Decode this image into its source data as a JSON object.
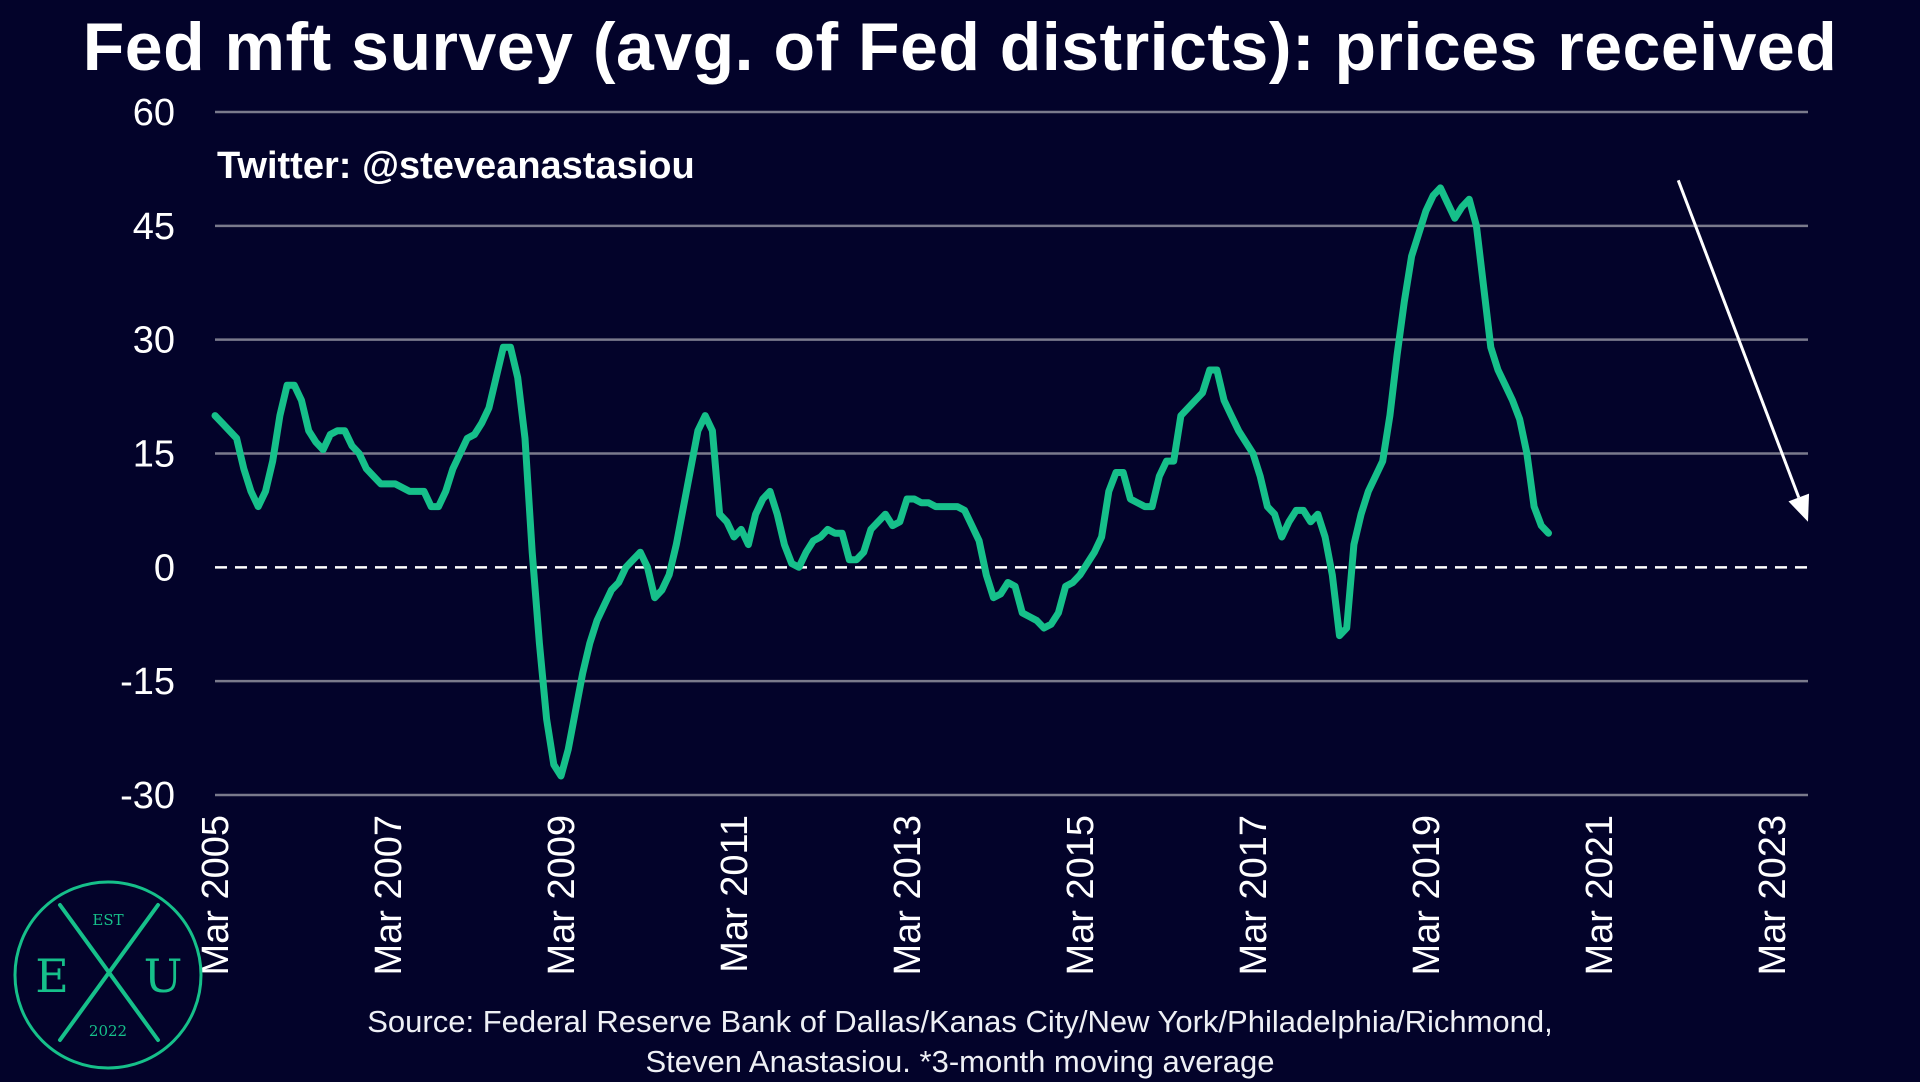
{
  "title": "Fed mft survey (avg. of Fed districts): prices received",
  "watermark": "Twitter: @steveanastasiou",
  "source_lines": [
    "Source: Federal Reserve Bank of Dallas/Kanas City/New York/Philadelphia/Richmond,",
    "Steven Anastasiou. *3-month moving average"
  ],
  "logo": {
    "top": "EST",
    "left": "E",
    "right": "U",
    "bottom": "2022"
  },
  "colors": {
    "background": "#03032a",
    "line": "#16c08a",
    "grid": "#7a7a8c",
    "arrow": "#ffffff"
  },
  "chart_data": {
    "type": "line",
    "title": "Fed mft survey (avg. of Fed districts): prices received",
    "xlabel": "",
    "ylabel": "",
    "ylim": [
      -30,
      60
    ],
    "yticks": [
      -30,
      -15,
      0,
      15,
      30,
      45,
      60
    ],
    "xlim": [
      "2005-03",
      "2023-08"
    ],
    "xticks": [
      {
        "date": "2005-03",
        "label": "Mar 2005"
      },
      {
        "date": "2007-03",
        "label": "Mar 2007"
      },
      {
        "date": "2009-03",
        "label": "Mar 2009"
      },
      {
        "date": "2011-03",
        "label": "Mar 2011"
      },
      {
        "date": "2013-03",
        "label": "Mar 2013"
      },
      {
        "date": "2015-03",
        "label": "Mar 2015"
      },
      {
        "date": "2017-03",
        "label": "Mar 2017"
      },
      {
        "date": "2019-03",
        "label": "Mar 2019"
      },
      {
        "date": "2021-03",
        "label": "Mar 2021"
      },
      {
        "date": "2023-03",
        "label": "Mar 2023"
      }
    ],
    "grid": true,
    "zero_line": "dashed",
    "annotation": {
      "type": "arrow",
      "from": [
        "2022-02",
        51
      ],
      "to": [
        "2023-08",
        6
      ]
    },
    "series": [
      {
        "values": [
          [
            "2005-03",
            20.0
          ],
          [
            "2005-04",
            19.0
          ],
          [
            "2005-05",
            18.0
          ],
          [
            "2005-06",
            17.0
          ],
          [
            "2005-07",
            13.0
          ],
          [
            "2005-08",
            10.0
          ],
          [
            "2005-09",
            8.0
          ],
          [
            "2005-10",
            10.0
          ],
          [
            "2005-11",
            14.0
          ],
          [
            "2005-12",
            20.0
          ],
          [
            "2006-01",
            24.0
          ],
          [
            "2006-02",
            24.0
          ],
          [
            "2006-03",
            22.0
          ],
          [
            "2006-04",
            18.0
          ],
          [
            "2006-05",
            16.5
          ],
          [
            "2006-06",
            15.5
          ],
          [
            "2006-07",
            17.5
          ],
          [
            "2006-08",
            18.0
          ],
          [
            "2006-09",
            18.0
          ],
          [
            "2006-10",
            16.0
          ],
          [
            "2006-11",
            15.0
          ],
          [
            "2006-12",
            13.0
          ],
          [
            "2007-01",
            12.0
          ],
          [
            "2007-02",
            11.0
          ],
          [
            "2007-03",
            11.0
          ],
          [
            "2007-04",
            11.0
          ],
          [
            "2007-05",
            10.5
          ],
          [
            "2007-06",
            10.0
          ],
          [
            "2007-07",
            10.0
          ],
          [
            "2007-08",
            10.0
          ],
          [
            "2007-09",
            8.0
          ],
          [
            "2007-10",
            8.0
          ],
          [
            "2007-11",
            10.0
          ],
          [
            "2007-12",
            13.0
          ],
          [
            "2008-01",
            15.0
          ],
          [
            "2008-02",
            17.0
          ],
          [
            "2008-03",
            17.5
          ],
          [
            "2008-04",
            19.0
          ],
          [
            "2008-05",
            21.0
          ],
          [
            "2008-06",
            25.0
          ],
          [
            "2008-07",
            29.0
          ],
          [
            "2008-08",
            29.0
          ],
          [
            "2008-09",
            25.0
          ],
          [
            "2008-10",
            17.0
          ],
          [
            "2008-11",
            2.0
          ],
          [
            "2008-12",
            -10.0
          ],
          [
            "2009-01",
            -20.0
          ],
          [
            "2009-02",
            -26.0
          ],
          [
            "2009-03",
            -27.5
          ],
          [
            "2009-04",
            -24.0
          ],
          [
            "2009-05",
            -19.0
          ],
          [
            "2009-06",
            -14.0
          ],
          [
            "2009-07",
            -10.0
          ],
          [
            "2009-08",
            -7.0
          ],
          [
            "2009-09",
            -5.0
          ],
          [
            "2009-10",
            -3.0
          ],
          [
            "2009-11",
            -2.0
          ],
          [
            "2009-12",
            0.0
          ],
          [
            "2010-01",
            1.0
          ],
          [
            "2010-02",
            2.0
          ],
          [
            "2010-03",
            0.0
          ],
          [
            "2010-04",
            -4.0
          ],
          [
            "2010-05",
            -3.0
          ],
          [
            "2010-06",
            -1.0
          ],
          [
            "2010-07",
            3.0
          ],
          [
            "2010-08",
            8.0
          ],
          [
            "2010-09",
            13.0
          ],
          [
            "2010-10",
            18.0
          ],
          [
            "2010-11",
            20.0
          ],
          [
            "2010-12",
            18.0
          ],
          [
            "2011-01",
            7.0
          ],
          [
            "2011-02",
            6.0
          ],
          [
            "2011-03",
            4.0
          ],
          [
            "2011-04",
            5.0
          ],
          [
            "2011-05",
            3.0
          ],
          [
            "2011-06",
            7.0
          ],
          [
            "2011-07",
            9.0
          ],
          [
            "2011-08",
            10.0
          ],
          [
            "2011-09",
            7.0
          ],
          [
            "2011-10",
            3.0
          ],
          [
            "2011-11",
            0.5
          ],
          [
            "2011-12",
            0.0
          ],
          [
            "2012-01",
            2.0
          ],
          [
            "2012-02",
            3.5
          ],
          [
            "2012-03",
            4.0
          ],
          [
            "2012-04",
            5.0
          ],
          [
            "2012-05",
            4.5
          ],
          [
            "2012-06",
            4.5
          ],
          [
            "2012-07",
            1.0
          ],
          [
            "2012-08",
            1.0
          ],
          [
            "2012-09",
            2.0
          ],
          [
            "2012-10",
            5.0
          ],
          [
            "2012-11",
            6.0
          ],
          [
            "2012-12",
            7.0
          ],
          [
            "2013-01",
            5.5
          ],
          [
            "2013-02",
            6.0
          ],
          [
            "2013-03",
            9.0
          ],
          [
            "2013-04",
            9.0
          ],
          [
            "2013-05",
            8.5
          ],
          [
            "2013-06",
            8.5
          ],
          [
            "2013-07",
            8.0
          ],
          [
            "2013-08",
            8.0
          ],
          [
            "2013-09",
            8.0
          ],
          [
            "2013-10",
            8.0
          ],
          [
            "2013-11",
            7.5
          ],
          [
            "2013-12",
            5.5
          ],
          [
            "2014-01",
            3.5
          ],
          [
            "2014-02",
            -1.0
          ],
          [
            "2014-03",
            -4.0
          ],
          [
            "2014-04",
            -3.5
          ],
          [
            "2014-05",
            -2.0
          ],
          [
            "2014-06",
            -2.5
          ],
          [
            "2014-07",
            -6.0
          ],
          [
            "2014-08",
            -6.5
          ],
          [
            "2014-09",
            -7.0
          ],
          [
            "2014-10",
            -8.0
          ],
          [
            "2014-11",
            -7.5
          ],
          [
            "2014-12",
            -6.0
          ],
          [
            "2015-01",
            -2.5
          ],
          [
            "2015-02",
            -2.0
          ],
          [
            "2015-03",
            -1.0
          ],
          [
            "2015-04",
            0.5
          ],
          [
            "2015-05",
            2.0
          ],
          [
            "2015-06",
            4.0
          ],
          [
            "2015-07",
            10.0
          ],
          [
            "2015-08",
            12.5
          ],
          [
            "2015-09",
            12.5
          ],
          [
            "2015-10",
            9.0
          ],
          [
            "2015-11",
            8.5
          ],
          [
            "2015-12",
            8.0
          ],
          [
            "2016-01",
            8.0
          ],
          [
            "2016-02",
            12.0
          ],
          [
            "2016-03",
            14.0
          ],
          [
            "2016-04",
            14.0
          ],
          [
            "2016-05",
            20.0
          ],
          [
            "2016-06",
            21.0
          ],
          [
            "2016-07",
            22.0
          ],
          [
            "2016-08",
            23.0
          ],
          [
            "2016-09",
            26.0
          ],
          [
            "2016-10",
            26.0
          ],
          [
            "2016-11",
            22.0
          ],
          [
            "2016-12",
            20.0
          ],
          [
            "2017-01",
            18.0
          ],
          [
            "2017-02",
            16.5
          ],
          [
            "2017-03",
            15.0
          ],
          [
            "2017-04",
            12.0
          ],
          [
            "2017-05",
            8.0
          ],
          [
            "2017-06",
            7.0
          ],
          [
            "2017-07",
            4.0
          ],
          [
            "2017-08",
            6.0
          ],
          [
            "2017-09",
            7.5
          ],
          [
            "2017-10",
            7.5
          ],
          [
            "2017-11",
            6.0
          ],
          [
            "2017-12",
            7.0
          ],
          [
            "2018-01",
            4.0
          ],
          [
            "2018-02",
            -1.0
          ],
          [
            "2018-03",
            -9.0
          ],
          [
            "2018-04",
            -8.0
          ],
          [
            "2018-05",
            3.0
          ],
          [
            "2018-06",
            7.0
          ],
          [
            "2018-07",
            10.0
          ],
          [
            "2018-08",
            12.0
          ],
          [
            "2018-09",
            14.0
          ],
          [
            "2018-10",
            20.0
          ],
          [
            "2018-11",
            28.0
          ],
          [
            "2018-12",
            35.0
          ],
          [
            "2019-01",
            41.0
          ],
          [
            "2019-02",
            44.0
          ],
          [
            "2019-03",
            47.0
          ],
          [
            "2019-04",
            49.0
          ],
          [
            "2019-05",
            50.0
          ],
          [
            "2019-06",
            48.0
          ],
          [
            "2019-07",
            46.0
          ],
          [
            "2019-08",
            47.5
          ],
          [
            "2019-09",
            48.5
          ],
          [
            "2019-10",
            45.0
          ],
          [
            "2019-11",
            37.0
          ],
          [
            "2019-12",
            29.0
          ],
          [
            "2020-01",
            26.0
          ],
          [
            "2020-02",
            24.0
          ],
          [
            "2020-03",
            22.0
          ],
          [
            "2020-04",
            19.5
          ],
          [
            "2020-05",
            15.0
          ],
          [
            "2020-06",
            8.0
          ],
          [
            "2020-07",
            5.5
          ],
          [
            "2020-08",
            4.5
          ]
        ]
      }
    ]
  }
}
